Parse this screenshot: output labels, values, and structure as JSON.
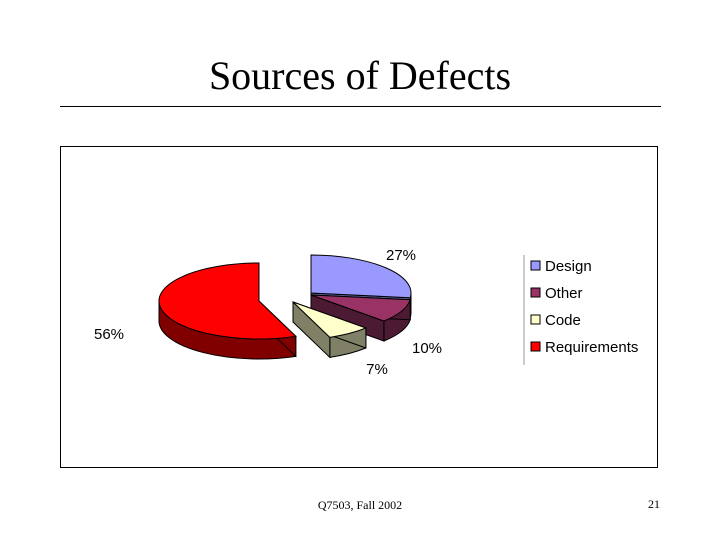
{
  "slide": {
    "title": "Sources of Defects",
    "footer": "Q7503, Fall 2002",
    "page_number": "21"
  },
  "chart_data": {
    "type": "pie",
    "title": "",
    "exploded_3d": true,
    "legend_position": "right",
    "slices": [
      {
        "label": "Design",
        "value": 27,
        "display": "27%",
        "color": "#9999ff",
        "side_color": "#5c5c99"
      },
      {
        "label": "Other",
        "value": 10,
        "display": "10%",
        "color": "#993366",
        "side_color": "#4d1a33"
      },
      {
        "label": "Code",
        "value": 7,
        "display": "7%",
        "color": "#ffffcc",
        "side_color": "#808066"
      },
      {
        "label": "Requirements",
        "value": 56,
        "display": "56%",
        "color": "#ff0000",
        "side_color": "#800000"
      }
    ]
  }
}
